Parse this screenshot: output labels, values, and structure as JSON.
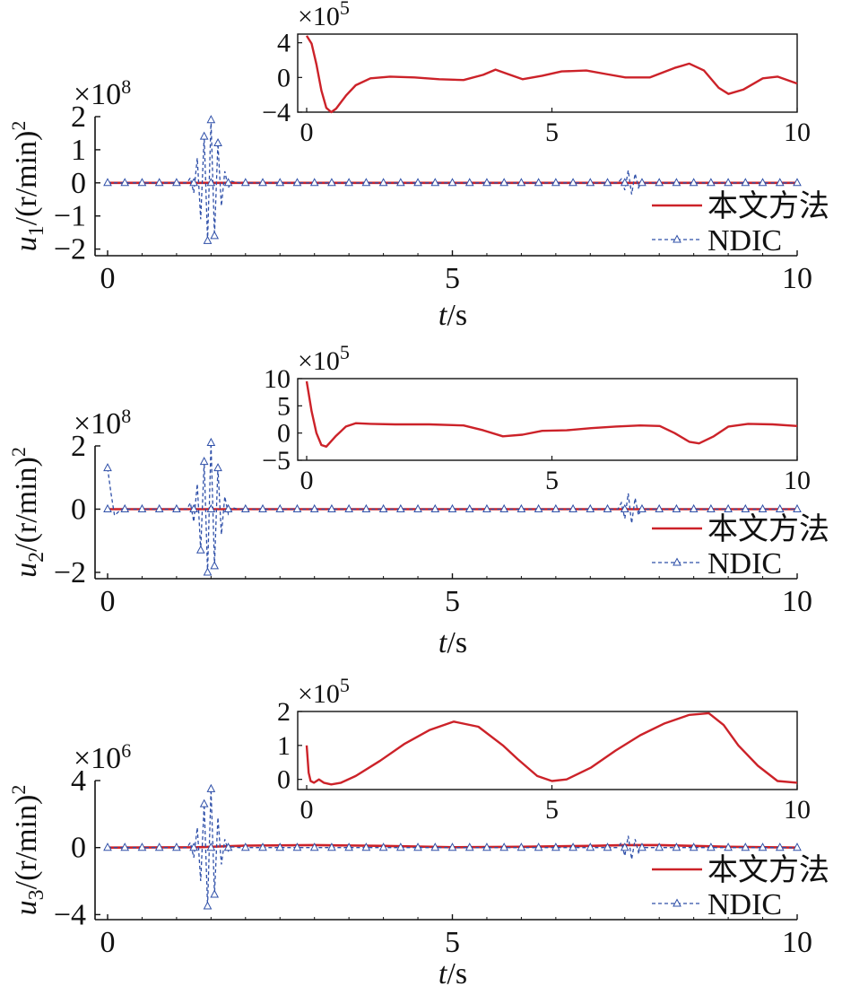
{
  "colors": {
    "method": "#cc2229",
    "ndic": "#2e4fa8",
    "axis": "#111111"
  },
  "chart_data": [
    {
      "type": "line",
      "panel": "u1",
      "ylabel": {
        "var": "u",
        "sub": "1",
        "unit": "/(r/min)",
        "sup": "2"
      },
      "xlabel": {
        "var": "t",
        "unit": "/s"
      },
      "multiplier": {
        "base": "×10",
        "exp": "8"
      },
      "xlim": [
        0,
        10
      ],
      "ylim": [
        -2.2,
        2
      ],
      "xticks": [
        "0",
        "5",
        "10"
      ],
      "yticks": [
        "2",
        "1",
        "0",
        "−1",
        "−2"
      ],
      "yticks_values": [
        2,
        1,
        0,
        -1,
        -2
      ],
      "legend": {
        "placement": "lower-right",
        "entries": [
          "本文方法",
          "NDIC"
        ]
      },
      "series": [
        {
          "name": "本文方法",
          "style": "solid",
          "x": [
            0,
            10
          ],
          "y": [
            0,
            0
          ]
        },
        {
          "name": "NDIC",
          "style": "dashed-triangle",
          "x": [
            0,
            1.15,
            1.2,
            1.25,
            1.3,
            1.35,
            1.4,
            1.45,
            1.5,
            1.55,
            1.6,
            1.65,
            1.7,
            1.75,
            1.8,
            1.9,
            7.4,
            7.45,
            7.5,
            7.55,
            7.6,
            7.65,
            7.7,
            7.75,
            7.8,
            10
          ],
          "y": [
            0,
            0,
            0.15,
            -0.3,
            0.75,
            -1.1,
            1.4,
            -1.75,
            1.9,
            -1.6,
            1.2,
            -0.7,
            0.35,
            -0.15,
            0.05,
            0,
            0,
            0.12,
            -0.22,
            0.38,
            -0.35,
            0.28,
            -0.15,
            0.06,
            0,
            0
          ]
        }
      ],
      "inset": {
        "multiplier": {
          "base": "×10",
          "exp": "5"
        },
        "xlim": [
          0,
          10
        ],
        "ylim": [
          -4,
          5
        ],
        "xticks": [
          "0",
          "5",
          "10"
        ],
        "yticks": [
          "4",
          "0",
          "−4"
        ],
        "yticks_values": [
          4,
          0,
          -4
        ],
        "series": [
          {
            "name": "本文方法",
            "x": [
              0,
              0.1,
              0.2,
              0.3,
              0.4,
              0.5,
              0.6,
              0.8,
              1.0,
              1.3,
              1.7,
              2.2,
              2.7,
              3.2,
              3.6,
              3.85,
              4.1,
              4.4,
              4.8,
              5.2,
              5.7,
              6.1,
              6.5,
              7.0,
              7.5,
              7.8,
              8.1,
              8.4,
              8.6,
              8.9,
              9.3,
              9.6,
              10
            ],
            "y": [
              4.8,
              3.9,
              1.5,
              -1.5,
              -3.5,
              -4.0,
              -3.6,
              -2.1,
              -0.9,
              -0.1,
              0.1,
              0.0,
              -0.2,
              -0.3,
              0.3,
              0.9,
              0.4,
              -0.2,
              0.2,
              0.7,
              0.8,
              0.4,
              0.0,
              0.0,
              1.1,
              1.6,
              0.8,
              -1.2,
              -1.9,
              -1.4,
              -0.1,
              0.1,
              -0.7
            ]
          }
        ]
      }
    },
    {
      "type": "line",
      "panel": "u2",
      "ylabel": {
        "var": "u",
        "sub": "2",
        "unit": "/(r/min)",
        "sup": "2"
      },
      "xlabel": {
        "var": "t",
        "unit": "/s"
      },
      "multiplier": {
        "base": "×10",
        "exp": "8"
      },
      "xlim": [
        0,
        10
      ],
      "ylim": [
        -2.2,
        2
      ],
      "xticks": [
        "0",
        "5",
        "10"
      ],
      "yticks": [
        "2",
        "0",
        "−2"
      ],
      "yticks_values": [
        2,
        0,
        -2
      ],
      "legend": {
        "placement": "lower-right",
        "entries": [
          "本文方法",
          "NDIC"
        ]
      },
      "series": [
        {
          "name": "本文方法",
          "style": "solid",
          "x": [
            0,
            10
          ],
          "y": [
            0,
            0
          ]
        },
        {
          "name": "NDIC",
          "style": "dashed-triangle",
          "x": [
            0,
            0.05,
            0.1,
            0.15,
            0.2,
            0.3,
            1.15,
            1.2,
            1.25,
            1.3,
            1.35,
            1.4,
            1.45,
            1.5,
            1.55,
            1.6,
            1.65,
            1.7,
            1.75,
            1.8,
            1.9,
            7.4,
            7.45,
            7.5,
            7.55,
            7.6,
            7.65,
            7.7,
            7.75,
            7.8,
            10
          ],
          "y": [
            1.3,
            0.5,
            -0.2,
            -0.1,
            0.0,
            0,
            0,
            0.2,
            -0.4,
            0.8,
            -1.3,
            1.5,
            -2.0,
            2.1,
            -1.8,
            1.3,
            -0.8,
            0.4,
            -0.15,
            0.05,
            0,
            0,
            0.2,
            -0.3,
            0.5,
            -0.45,
            0.35,
            -0.2,
            0.08,
            0,
            0
          ]
        }
      ],
      "inset": {
        "multiplier": {
          "base": "×10",
          "exp": "5"
        },
        "xlim": [
          0,
          10
        ],
        "ylim": [
          -5,
          10
        ],
        "xticks": [
          "0",
          "5",
          "10"
        ],
        "yticks": [
          "10",
          "5",
          "0",
          "−5"
        ],
        "yticks_values": [
          10,
          5,
          0,
          -5
        ],
        "series": [
          {
            "name": "本文方法",
            "x": [
              0,
              0.1,
              0.2,
              0.3,
              0.4,
              0.6,
              0.8,
              1.0,
              1.3,
              1.8,
              2.5,
              3.2,
              3.6,
              4.0,
              4.4,
              4.8,
              5.3,
              5.8,
              6.3,
              6.8,
              7.2,
              7.5,
              7.8,
              8.0,
              8.3,
              8.6,
              9.0,
              9.5,
              10
            ],
            "y": [
              9.5,
              4.0,
              0.0,
              -2.2,
              -2.5,
              -0.5,
              1.2,
              1.8,
              1.7,
              1.6,
              1.6,
              1.4,
              0.5,
              -0.6,
              -0.3,
              0.4,
              0.5,
              0.9,
              1.2,
              1.4,
              1.3,
              0.0,
              -1.6,
              -1.9,
              -0.6,
              1.2,
              1.7,
              1.6,
              1.3
            ]
          }
        ]
      }
    },
    {
      "type": "line",
      "panel": "u3",
      "ylabel": {
        "var": "u",
        "sub": "3",
        "unit": "/(r/min)",
        "sup": "2"
      },
      "xlabel": {
        "var": "t",
        "unit": "/s"
      },
      "multiplier": {
        "base": "×10",
        "exp": "6"
      },
      "xlim": [
        0,
        10
      ],
      "ylim": [
        -4.3,
        4
      ],
      "xticks": [
        "0",
        "5",
        "10"
      ],
      "yticks": [
        "4",
        "0",
        "−4"
      ],
      "yticks_values": [
        4,
        0,
        -4
      ],
      "legend": {
        "placement": "lower-right",
        "entries": [
          "本文方法",
          "NDIC"
        ]
      },
      "series": [
        {
          "name": "本文方法",
          "style": "solid",
          "x": [
            0,
            1.3,
            2.0,
            3.0,
            4.0,
            5.0,
            6.0,
            7.0,
            7.5,
            8.0,
            8.5,
            9.0,
            10
          ],
          "y": [
            0,
            0.02,
            0.12,
            0.15,
            0.1,
            0.02,
            0.05,
            0.1,
            0.15,
            0.15,
            0.1,
            0.05,
            0
          ]
        },
        {
          "name": "NDIC",
          "style": "dashed-triangle",
          "x": [
            0,
            1.15,
            1.2,
            1.25,
            1.3,
            1.35,
            1.4,
            1.45,
            1.5,
            1.55,
            1.6,
            1.65,
            1.7,
            1.75,
            1.8,
            1.9,
            7.4,
            7.45,
            7.5,
            7.55,
            7.6,
            7.65,
            7.7,
            7.75,
            7.8,
            10
          ],
          "y": [
            0,
            0,
            0.3,
            -0.6,
            1.2,
            -2.0,
            2.6,
            -3.5,
            3.5,
            -2.8,
            1.8,
            -1.0,
            0.5,
            -0.2,
            0.05,
            0,
            0,
            0.3,
            -0.5,
            0.7,
            -0.7,
            0.5,
            -0.3,
            0.1,
            0,
            0
          ]
        }
      ],
      "inset": {
        "multiplier": {
          "base": "×10",
          "exp": "5"
        },
        "xlim": [
          0,
          10
        ],
        "ylim": [
          -0.3,
          2
        ],
        "xticks": [
          "0",
          "5",
          "10"
        ],
        "yticks": [
          "2",
          "1",
          "0"
        ],
        "yticks_values": [
          2,
          1,
          0
        ],
        "series": [
          {
            "name": "本文方法",
            "x": [
              0,
              0.04,
              0.08,
              0.15,
              0.25,
              0.35,
              0.5,
              0.7,
              1.0,
              1.5,
              2.0,
              2.5,
              3.0,
              3.5,
              4.0,
              4.3,
              4.7,
              5.0,
              5.3,
              5.8,
              6.3,
              6.8,
              7.3,
              7.8,
              8.2,
              8.5,
              8.8,
              9.2,
              9.6,
              10
            ],
            "y": [
              1.0,
              0.2,
              -0.05,
              -0.1,
              0.0,
              -0.1,
              -0.15,
              -0.1,
              0.1,
              0.55,
              1.05,
              1.45,
              1.7,
              1.55,
              1.0,
              0.6,
              0.1,
              -0.05,
              0.0,
              0.35,
              0.85,
              1.3,
              1.65,
              1.9,
              1.95,
              1.6,
              1.0,
              0.4,
              -0.05,
              -0.1
            ]
          }
        ]
      }
    }
  ]
}
